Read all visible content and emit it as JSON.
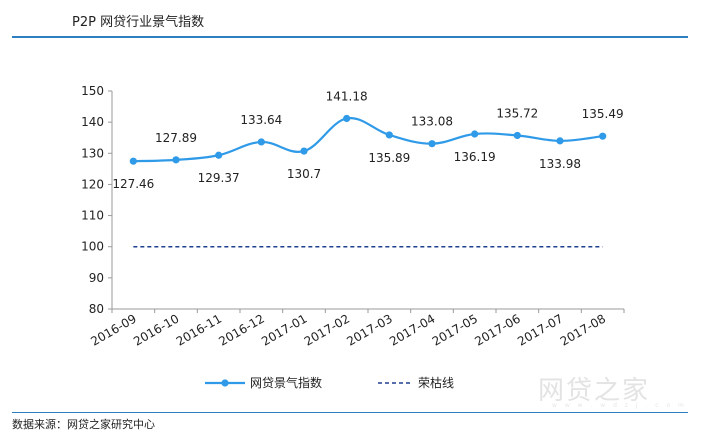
{
  "header": {
    "title": "P2P 网贷行业景气指数"
  },
  "source": {
    "text": "数据来源：网贷之家研究中心"
  },
  "watermark": {
    "text": "网贷之家",
    "sub": "w w w . w d z j . c o m"
  },
  "chart_data": {
    "type": "line",
    "title": "",
    "xlabel": "",
    "ylabel": "",
    "categories": [
      "2016-09",
      "2016-10",
      "2016-11",
      "2016-12",
      "2017-01",
      "2017-02",
      "2017-03",
      "2017-04",
      "2017-05",
      "2017-06",
      "2017-07",
      "2017-08"
    ],
    "series": [
      {
        "name": "网贷景气指数",
        "values": [
          127.46,
          127.89,
          129.37,
          133.64,
          130.7,
          141.18,
          135.89,
          133.08,
          136.19,
          135.72,
          133.98,
          135.49
        ],
        "color": "#2f9ae8",
        "style": "smooth-line-with-markers"
      },
      {
        "name": "荣枯线",
        "values": [
          100,
          100,
          100,
          100,
          100,
          100,
          100,
          100,
          100,
          100,
          100,
          100
        ],
        "color": "#1f3f8f",
        "style": "dashed"
      }
    ],
    "data_labels": [
      "127.46",
      "127.89",
      "129.37",
      "133.64",
      "130.7",
      "141.18",
      "135.89",
      "133.08",
      "136.19",
      "135.72",
      "133.98",
      "135.49"
    ],
    "ylim": [
      80,
      150
    ],
    "yticks": [
      80,
      90,
      100,
      110,
      120,
      130,
      140,
      150
    ],
    "grid": false,
    "legend_position": "bottom"
  }
}
